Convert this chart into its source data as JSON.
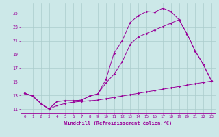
{
  "xlabel": "Windchill (Refroidissement éolien,°C)",
  "bg_color": "#cce8e8",
  "grid_color": "#aacccc",
  "line_color": "#990099",
  "xlim": [
    -0.5,
    23.5
  ],
  "ylim": [
    10.4,
    26.5
  ],
  "yticks": [
    11,
    13,
    15,
    17,
    19,
    21,
    23,
    25
  ],
  "xticks": [
    0,
    1,
    2,
    3,
    4,
    5,
    6,
    7,
    8,
    9,
    10,
    11,
    12,
    13,
    14,
    15,
    16,
    17,
    18,
    19,
    20,
    21,
    22,
    23
  ],
  "line1_x": [
    0,
    1,
    2,
    3,
    4,
    5,
    6,
    7,
    8,
    9,
    10,
    11,
    12,
    13,
    14,
    15,
    16,
    17,
    18,
    19,
    20,
    21,
    22,
    23
  ],
  "line1_y": [
    13.3,
    12.9,
    11.8,
    11.0,
    12.1,
    12.2,
    12.2,
    12.3,
    12.9,
    13.2,
    15.3,
    19.2,
    21.0,
    23.7,
    24.7,
    25.3,
    25.2,
    25.8,
    25.3,
    24.1,
    22.0,
    19.5,
    17.5,
    15.1
  ],
  "line2_x": [
    0,
    1,
    2,
    3,
    4,
    5,
    6,
    7,
    8,
    9,
    10,
    11,
    12,
    13,
    14,
    15,
    16,
    17,
    18,
    19,
    20,
    21,
    22,
    23
  ],
  "line2_y": [
    13.3,
    12.9,
    11.8,
    11.0,
    12.1,
    12.2,
    12.2,
    12.3,
    12.9,
    13.2,
    14.8,
    16.1,
    17.9,
    20.5,
    21.6,
    22.1,
    22.6,
    23.1,
    23.6,
    24.1,
    22.0,
    19.5,
    17.5,
    15.1
  ],
  "line3_x": [
    0,
    1,
    2,
    3,
    4,
    5,
    6,
    7,
    8,
    9,
    10,
    11,
    12,
    13,
    14,
    15,
    16,
    17,
    18,
    19,
    20,
    21,
    22,
    23
  ],
  "line3_y": [
    13.3,
    12.9,
    11.8,
    11.0,
    11.5,
    11.8,
    12.0,
    12.1,
    12.2,
    12.3,
    12.5,
    12.7,
    12.9,
    13.1,
    13.3,
    13.5,
    13.7,
    13.9,
    14.1,
    14.3,
    14.5,
    14.7,
    14.9,
    15.1
  ]
}
